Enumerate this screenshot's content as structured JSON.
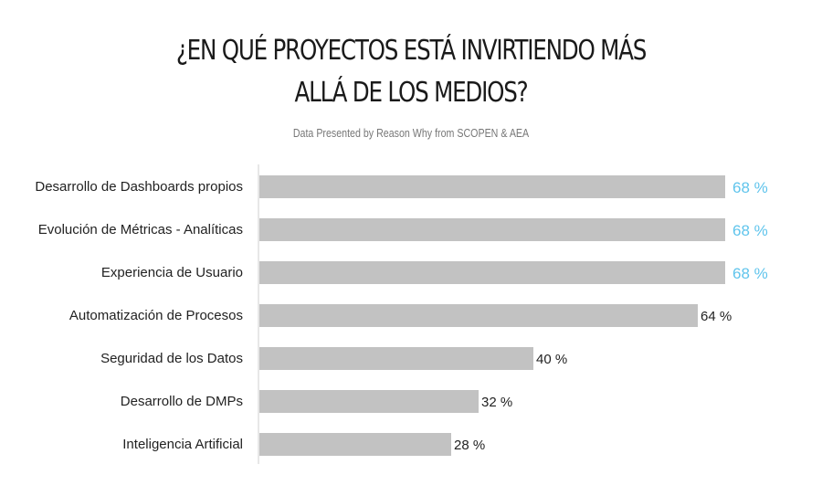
{
  "chart_data": {
    "type": "bar",
    "orientation": "horizontal",
    "title_lines": [
      "¿EN QUÉ PROYECTOS ESTÁ INVIRTIENDO MÁS",
      "ALLÁ DE LOS MEDIOS?"
    ],
    "subtitle": "Data Presented by Reason Why from SCOPEN & AEA",
    "categories": [
      "Desarrollo de Dashboards propios",
      "Evolución de Métricas - Analíticas",
      "Experiencia de Usuario",
      "Automatización de Procesos",
      "Seguridad de los Datos",
      "Desarrollo de DMPs",
      "Inteligencia Artificial"
    ],
    "values": [
      68,
      68,
      68,
      64,
      40,
      32,
      28
    ],
    "value_labels": [
      "68 %",
      "68 %",
      "68 %",
      "64 %",
      "40 %",
      "32 %",
      "28 %"
    ],
    "highlighted": [
      true,
      true,
      true,
      false,
      false,
      false,
      false
    ],
    "xlim": [
      0,
      68
    ],
    "grid": false,
    "legend": "none"
  },
  "colors": {
    "bar": "#c2c2c2",
    "axis": "#cfcfcf",
    "highlight_text": "#5fc4ec",
    "text": "#222222"
  }
}
